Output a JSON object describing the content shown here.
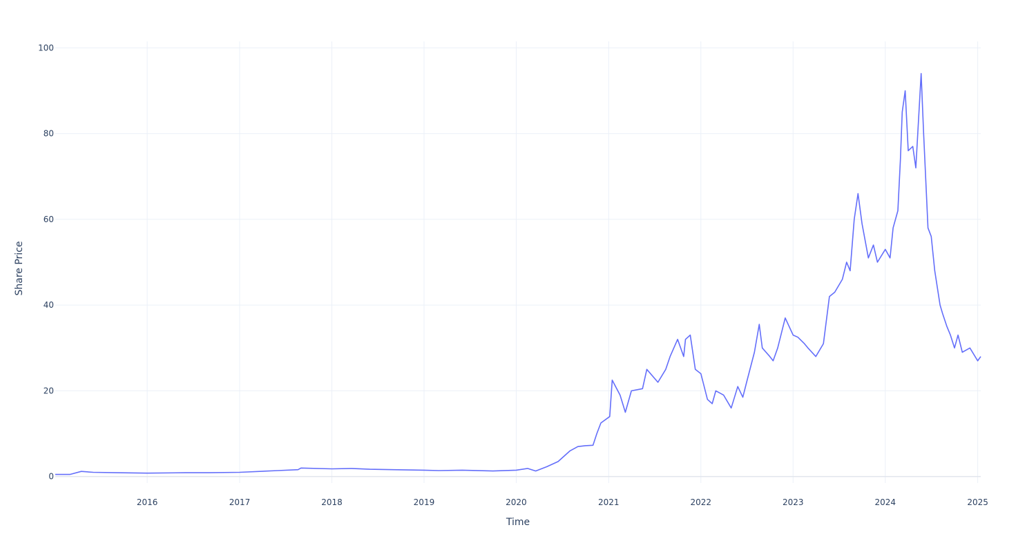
{
  "chart_data": {
    "type": "line",
    "title": "",
    "xlabel": "Time",
    "ylabel": "Share Price",
    "xlim": [
      "2015-01-02",
      "2025-01-13"
    ],
    "ylim": [
      -1.5,
      101.5
    ],
    "x_ticks": [
      "2016",
      "2017",
      "2018",
      "2019",
      "2020",
      "2021",
      "2022",
      "2023",
      "2024",
      "2025"
    ],
    "y_ticks": [
      0,
      20,
      40,
      60,
      80,
      100
    ],
    "grid": true,
    "line_color": "#636efa",
    "series": [
      {
        "x": [
          "2015-01-02",
          "2015-03-01",
          "2015-04-15",
          "2015-06-01",
          "2015-09-01",
          "2016-01-01",
          "2016-06-01",
          "2016-09-01",
          "2017-01-01",
          "2017-06-01",
          "2017-08-20",
          "2017-09-01",
          "2018-01-01",
          "2018-03-20",
          "2018-06-01",
          "2018-09-01",
          "2019-01-01",
          "2019-03-01",
          "2019-06-01",
          "2019-10-01",
          "2020-01-01",
          "2020-02-15",
          "2020-03-18",
          "2020-05-01",
          "2020-06-15",
          "2020-08-01",
          "2020-09-01",
          "2020-10-01",
          "2020-10-31",
          "2020-11-15",
          "2020-12-01",
          "2021-01-05",
          "2021-01-15",
          "2021-02-15",
          "2021-03-08",
          "2021-04-01",
          "2021-05-15",
          "2021-06-01",
          "2021-07-15",
          "2021-08-15",
          "2021-09-01",
          "2021-10-01",
          "2021-10-25",
          "2021-11-01",
          "2021-11-20",
          "2021-12-10",
          "2022-01-01",
          "2022-01-27",
          "2022-02-15",
          "2022-03-01",
          "2022-04-01",
          "2022-05-01",
          "2022-05-27",
          "2022-06-16",
          "2022-07-01",
          "2022-08-01",
          "2022-08-20",
          "2022-09-01",
          "2022-10-01",
          "2022-10-14",
          "2022-11-01",
          "2022-12-01",
          "2023-01-01",
          "2023-01-20",
          "2023-02-15",
          "2023-03-01",
          "2023-04-01",
          "2023-05-01",
          "2023-05-25",
          "2023-06-15",
          "2023-07-15",
          "2023-08-01",
          "2023-08-15",
          "2023-08-31",
          "2023-09-15",
          "2023-10-01",
          "2023-10-26",
          "2023-11-15",
          "2023-12-01",
          "2024-01-01",
          "2024-01-20",
          "2024-02-01",
          "2024-02-20",
          "2024-03-01",
          "2024-03-08",
          "2024-03-20",
          "2024-04-01",
          "2024-04-19",
          "2024-05-01",
          "2024-05-22",
          "2024-06-01",
          "2024-06-18",
          "2024-07-01",
          "2024-07-15",
          "2024-08-05",
          "2024-08-15",
          "2024-09-01",
          "2024-09-15",
          "2024-10-01",
          "2024-10-15",
          "2024-11-01",
          "2024-12-01",
          "2025-01-01",
          "2025-01-13"
        ],
        "y": [
          0.5,
          0.5,
          1.2,
          1.0,
          0.9,
          0.8,
          0.9,
          0.9,
          1.0,
          1.4,
          1.6,
          2.0,
          1.8,
          1.9,
          1.7,
          1.6,
          1.5,
          1.4,
          1.5,
          1.3,
          1.5,
          1.9,
          1.3,
          2.3,
          3.5,
          6.0,
          7.0,
          7.2,
          7.3,
          10.0,
          12.5,
          14.0,
          22.5,
          19.0,
          15.0,
          20.0,
          20.5,
          25.0,
          22.0,
          25.0,
          28.0,
          32.0,
          28.0,
          32.0,
          33.0,
          25.0,
          24.0,
          18.0,
          17.0,
          20.0,
          19.0,
          16.0,
          21.0,
          18.5,
          22.0,
          29.0,
          35.5,
          30.0,
          28.0,
          27.0,
          30.0,
          37.0,
          33.0,
          32.5,
          31.0,
          30.0,
          28.0,
          31.0,
          42.0,
          43.0,
          46.0,
          50.0,
          48.0,
          60.0,
          66.0,
          59.0,
          51.0,
          54.0,
          50.0,
          53.0,
          51.0,
          58.0,
          62.0,
          74.0,
          85.0,
          90.0,
          76.0,
          77.0,
          72.0,
          94.0,
          80.0,
          58.0,
          56.0,
          48.0,
          40.0,
          38.0,
          35.0,
          33.0,
          30.0,
          33.0,
          29.0,
          30.0,
          27.0,
          28.0
        ]
      }
    ]
  }
}
